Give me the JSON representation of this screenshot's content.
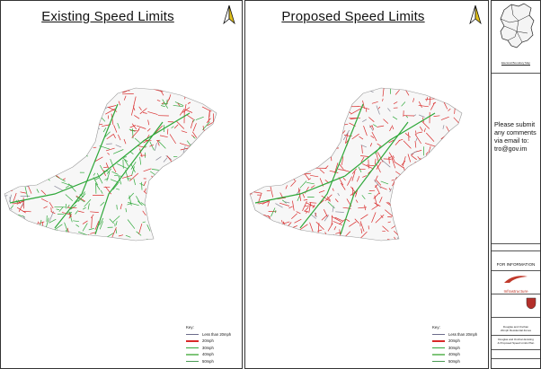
{
  "panels": {
    "left": {
      "title": "Existing Speed Limits"
    },
    "right": {
      "title": "Proposed Speed Limits"
    }
  },
  "key": {
    "title": "Key:",
    "items": [
      {
        "label": "Less than 20mph",
        "color": "#6b6b8a"
      },
      {
        "label": "20mph",
        "color": "#d92a2a"
      },
      {
        "label": "30mph",
        "color": "#2fa83a"
      },
      {
        "label": "40mph",
        "color": "#7fc57a"
      },
      {
        "label": "50mph",
        "color": "#4a9a55"
      }
    ]
  },
  "titleblock": {
    "location_label": "Electoral Boundary Map",
    "comment_text": "Please submit any comments via email to: tro@gov.im",
    "status": "FOR INFORMATION",
    "org": "Infrastructure",
    "project_line_1": "Douglas and Onchan",
    "project_line_2": "20mph Residential Zones",
    "drawing_line_1": "Douglas and Onchan Existing",
    "drawing_line_2": "& Proposed Speed Limits Plan"
  },
  "colors": {
    "road_20": "#d92a2a",
    "road_30": "#2fa83a",
    "road_other": "#8a8a9a",
    "org_accent": "#c0392b"
  }
}
